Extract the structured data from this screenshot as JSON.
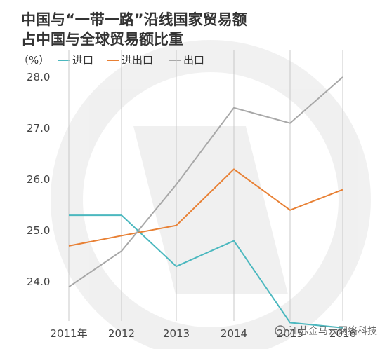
{
  "chart_data": {
    "type": "line",
    "title_lines": [
      "中国与“一带一路”沿线国家贸易额",
      "占中国与全球贸易额比重"
    ],
    "unit": "（%）",
    "categories": [
      "2011年",
      "2012",
      "2013",
      "2014",
      "2015",
      "2016"
    ],
    "y_ticks": [
      "24.0",
      "25.0",
      "26.0",
      "27.0",
      "28.0"
    ],
    "ylim": [
      23.1,
      28.2
    ],
    "grid": "vertical",
    "legend_position": "top-left",
    "series": [
      {
        "name": "进口",
        "color": "#4bb8bf",
        "values": [
          25.3,
          25.3,
          24.3,
          24.8,
          23.2,
          23.1
        ]
      },
      {
        "name": "进出口",
        "color": "#e88034",
        "values": [
          24.7,
          24.9,
          25.1,
          26.2,
          25.4,
          25.8
        ]
      },
      {
        "name": "出口",
        "color": "#a8a8a8",
        "values": [
          23.9,
          24.6,
          25.9,
          27.4,
          27.1,
          28.0
        ]
      }
    ]
  },
  "watermark": {
    "text": "江苏金马云网络科技"
  }
}
